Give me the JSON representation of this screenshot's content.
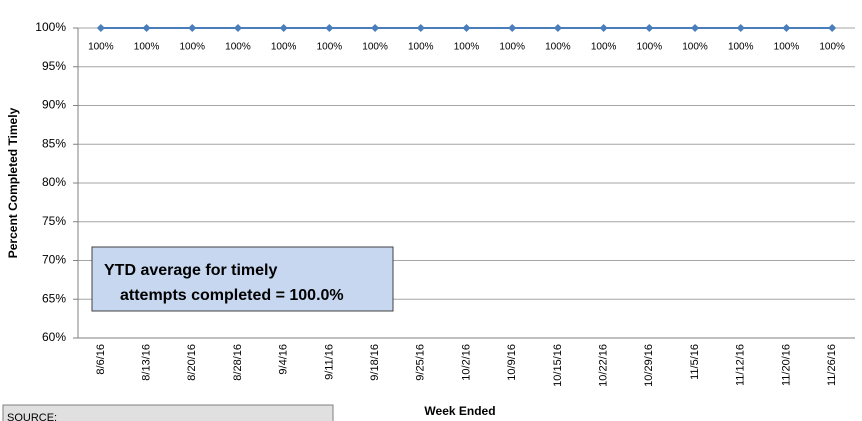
{
  "chart_data": {
    "type": "line",
    "y_label": "Percent Completed Timely",
    "x_label": "Week Ended",
    "categories": [
      "8/6/16",
      "8/13/16",
      "8/20/16",
      "8/28/16",
      "9/4/16",
      "9/11/16",
      "9/18/16",
      "9/25/16",
      "10/2/16",
      "10/9/16",
      "10/15/16",
      "10/22/16",
      "10/29/16",
      "11/5/16",
      "11/12/16",
      "11/20/16",
      "11/26/16"
    ],
    "values": [
      100,
      100,
      100,
      100,
      100,
      100,
      100,
      100,
      100,
      100,
      100,
      100,
      100,
      100,
      100,
      100,
      100
    ],
    "value_labels": [
      "100%",
      "100%",
      "100%",
      "100%",
      "100%",
      "100%",
      "100%",
      "100%",
      "100%",
      "100%",
      "100%",
      "100%",
      "100%",
      "100%",
      "100%",
      "100%",
      "100%"
    ],
    "color": "#4a7ebb",
    "ylim": [
      60,
      100
    ],
    "yticks": [
      {
        "value": 60,
        "label": "60%"
      },
      {
        "value": 65,
        "label": "65%"
      },
      {
        "value": 70,
        "label": "70%"
      },
      {
        "value": 75,
        "label": "75%"
      },
      {
        "value": 80,
        "label": "80%"
      },
      {
        "value": 85,
        "label": "85%"
      },
      {
        "value": 90,
        "label": "90%"
      },
      {
        "value": 95,
        "label": "95%"
      },
      {
        "value": 100,
        "label": "100%"
      }
    ],
    "grid": true,
    "annotation": [
      "YTD average for timely",
      "attempts completed =  100.0%"
    ],
    "source": "SOURCE:"
  }
}
